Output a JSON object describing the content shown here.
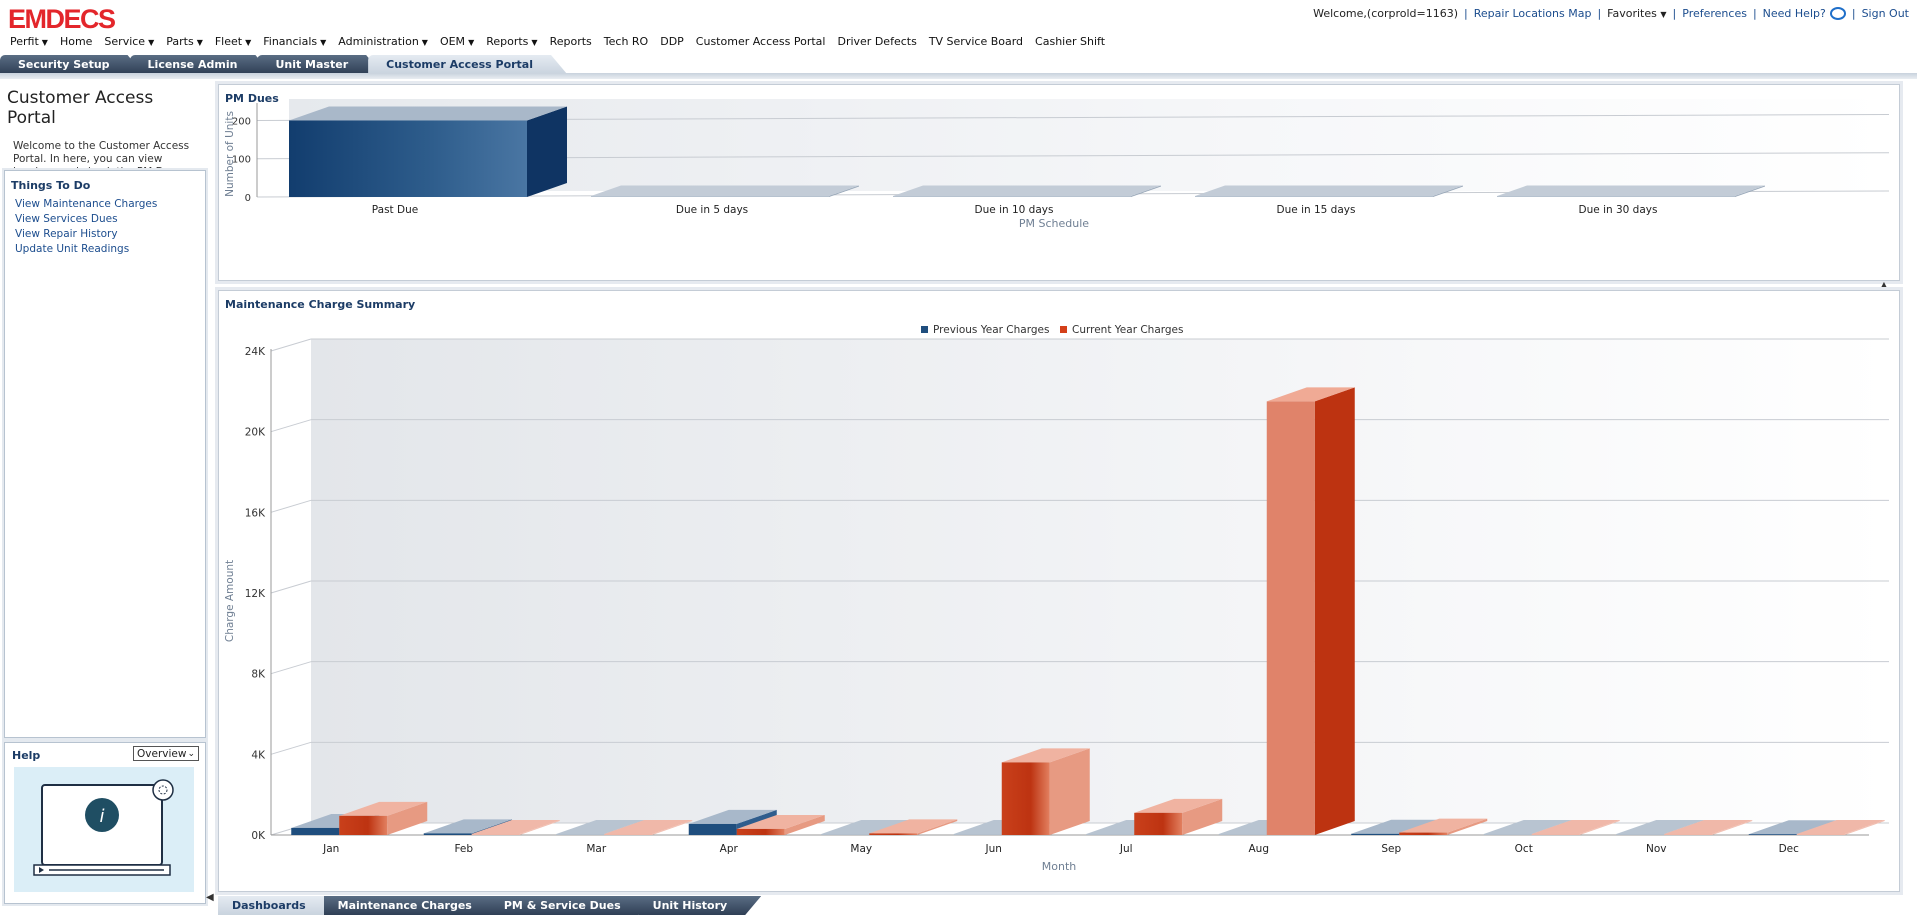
{
  "header": {
    "logo": "EMDECS",
    "welcome": "Welcome,(corprold=1163)",
    "links": [
      "Repair Locations Map",
      "Favorites",
      "Preferences",
      "Need Help?",
      "Sign Out"
    ],
    "menu": [
      {
        "label": "Perfit",
        "dropdown": true
      },
      {
        "label": "Home",
        "dropdown": false
      },
      {
        "label": "Service",
        "dropdown": true
      },
      {
        "label": "Parts",
        "dropdown": true
      },
      {
        "label": "Fleet",
        "dropdown": true
      },
      {
        "label": "Financials",
        "dropdown": true
      },
      {
        "label": "Administration",
        "dropdown": true
      },
      {
        "label": "OEM",
        "dropdown": true
      },
      {
        "label": "Reports",
        "dropdown": true
      },
      {
        "label": "Reports",
        "dropdown": false
      },
      {
        "label": "Tech RO",
        "dropdown": false
      },
      {
        "label": "DDP",
        "dropdown": false
      },
      {
        "label": "Customer Access Portal",
        "dropdown": false
      },
      {
        "label": "Driver Defects",
        "dropdown": false
      },
      {
        "label": "TV Service Board",
        "dropdown": false
      },
      {
        "label": "Cashier Shift",
        "dropdown": false
      }
    ],
    "tabs": [
      "Security Setup",
      "License Admin",
      "Unit Master",
      "Customer Access Portal"
    ],
    "active_tab": "Customer Access Portal"
  },
  "sidebar": {
    "title": "Customer Access Portal",
    "welcome": "Welcome to the Customer Access Portal. In here, you can view invoices and check the PM Dues.",
    "todo_title": "Things To Do",
    "todo_links": [
      "View Maintenance Charges",
      "View Services Dues",
      "View Repair History",
      "Update Unit Readings"
    ],
    "help_title": "Help",
    "help_select": "Overview"
  },
  "bottom_tabs": [
    "Dashboards",
    "Maintenance Charges",
    "PM & Service Dues",
    "Unit History"
  ],
  "active_bottom_tab": "Dashboards",
  "colors": {
    "previous": "#1f4e7e",
    "current": "#d4401a",
    "accent": "#1c3c66"
  },
  "chart_data": [
    {
      "type": "bar",
      "title": "PM Dues",
      "xlabel": "PM Schedule",
      "ylabel": "Number of Units",
      "categories": [
        "Past Due",
        "Due in 5 days",
        "Due in 10 days",
        "Due in 15 days",
        "Due in 30 days"
      ],
      "values": [
        200,
        0,
        0,
        0,
        0
      ],
      "ylim": [
        0,
        230
      ],
      "yticks": [
        "0",
        "100",
        "200"
      ],
      "grid": true
    },
    {
      "type": "bar",
      "title": "Maintenance Charge Summary",
      "xlabel": "Month",
      "ylabel": "Charge Amount",
      "categories": [
        "Jan",
        "Feb",
        "Mar",
        "Apr",
        "May",
        "Jun",
        "Jul",
        "Aug",
        "Sep",
        "Oct",
        "Nov",
        "Dec"
      ],
      "series": [
        {
          "name": "Previous Year Charges",
          "values": [
            350,
            80,
            0,
            550,
            0,
            0,
            0,
            0,
            60,
            0,
            0,
            40
          ]
        },
        {
          "name": "Current Year Charges",
          "values": [
            950,
            0,
            0,
            300,
            80,
            3600,
            1100,
            21500,
            120,
            0,
            0,
            0
          ]
        }
      ],
      "ylim": [
        0,
        24000
      ],
      "yticks": [
        "0K",
        "4K",
        "8K",
        "12K",
        "16K",
        "20K",
        "24K"
      ],
      "legend": "top-center",
      "grid": true
    }
  ]
}
